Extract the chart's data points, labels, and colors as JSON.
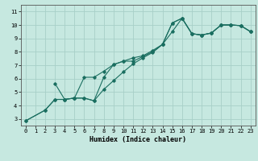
{
  "xlabel": "Humidex (Indice chaleur)",
  "xlim": [
    -0.5,
    23.5
  ],
  "ylim": [
    2.5,
    11.5
  ],
  "xticks": [
    0,
    1,
    2,
    3,
    4,
    5,
    6,
    7,
    8,
    9,
    10,
    11,
    12,
    13,
    14,
    15,
    16,
    17,
    18,
    19,
    20,
    21,
    22,
    23
  ],
  "yticks": [
    3,
    4,
    5,
    6,
    7,
    8,
    9,
    10,
    11
  ],
  "background_color": "#c6e8e0",
  "grid_color": "#a8cfc8",
  "line_color": "#1a6e60",
  "line1_x": [
    0,
    2,
    3,
    4,
    5,
    6,
    7,
    8,
    9,
    10,
    11,
    12,
    13,
    14,
    15,
    16,
    17,
    18,
    19,
    20,
    21,
    22,
    23
  ],
  "line1_y": [
    2.85,
    3.65,
    4.45,
    4.45,
    4.55,
    4.55,
    4.35,
    6.1,
    7.05,
    7.3,
    7.3,
    7.65,
    8.0,
    8.55,
    10.15,
    10.5,
    9.35,
    9.25,
    9.4,
    10.0,
    10.0,
    9.95,
    9.5
  ],
  "line2_x": [
    3,
    4,
    5,
    6,
    7,
    8,
    9,
    10,
    11,
    12,
    13,
    14,
    15,
    16,
    17,
    18,
    19,
    20,
    21,
    22,
    23
  ],
  "line2_y": [
    5.65,
    4.45,
    4.55,
    6.1,
    6.1,
    6.55,
    7.05,
    7.3,
    7.55,
    7.7,
    8.1,
    8.55,
    10.15,
    10.5,
    9.35,
    9.25,
    9.4,
    10.0,
    10.0,
    9.95,
    9.5
  ],
  "line3_x": [
    0,
    2,
    3,
    4,
    5,
    6,
    7,
    8,
    9,
    10,
    11,
    12,
    13,
    14,
    15,
    16,
    17,
    18,
    19,
    20,
    21,
    22,
    23
  ],
  "line3_y": [
    2.85,
    3.65,
    4.45,
    4.45,
    4.55,
    4.55,
    4.35,
    5.2,
    5.85,
    6.5,
    7.1,
    7.55,
    7.95,
    8.55,
    9.5,
    10.5,
    9.35,
    9.25,
    9.4,
    10.0,
    10.0,
    9.95,
    9.5
  ],
  "tick_fontsize": 5,
  "xlabel_fontsize": 6,
  "linewidth": 0.8,
  "markersize": 1.8
}
